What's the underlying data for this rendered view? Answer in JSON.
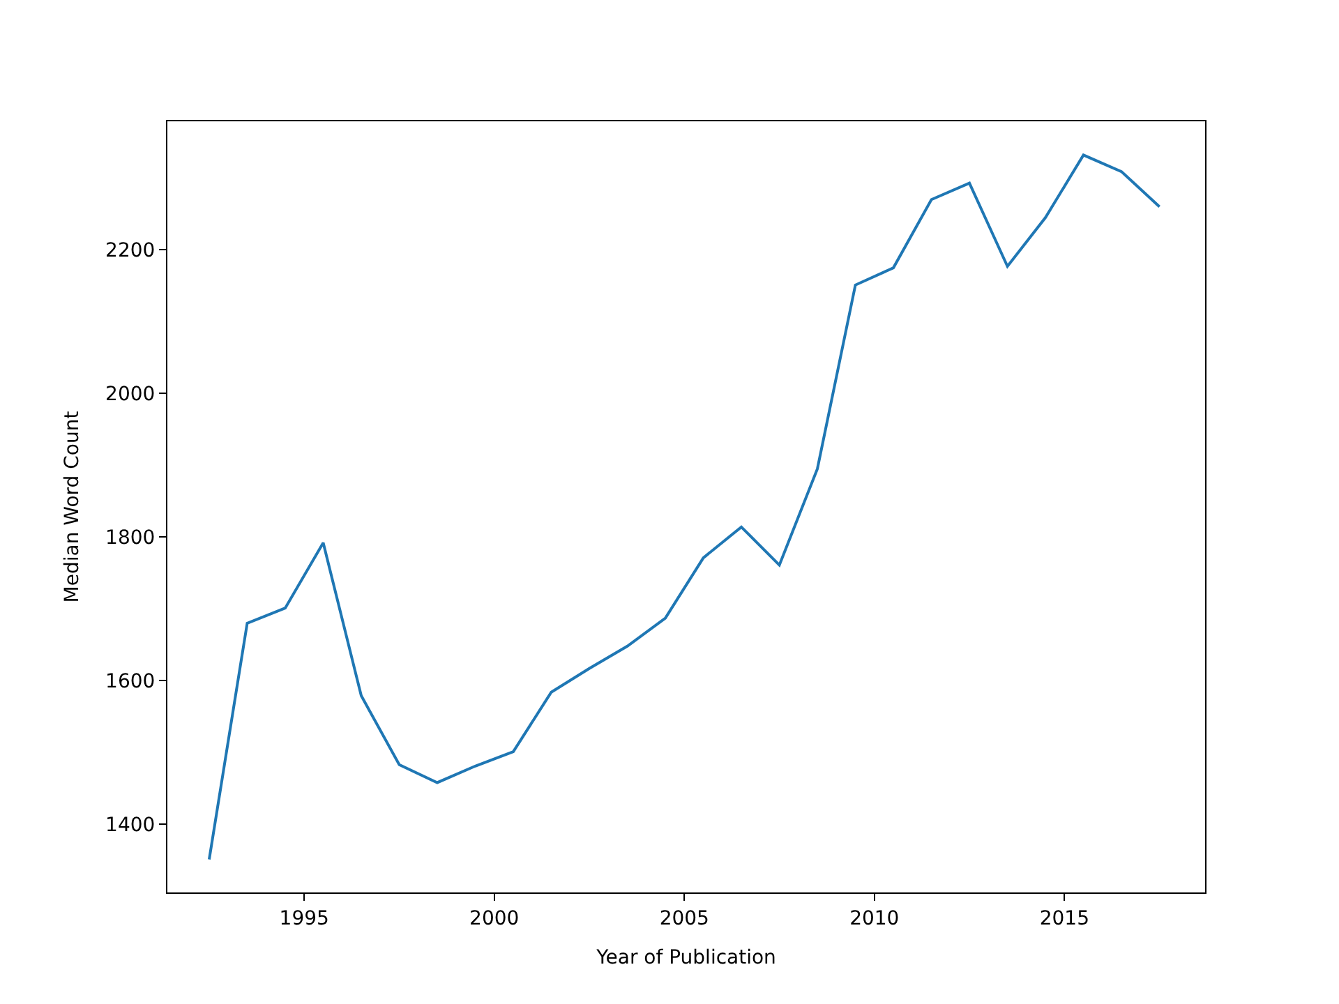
{
  "chart_data": {
    "type": "line",
    "xlabel": "Year of Publication",
    "ylabel": "Median Word Count",
    "x": [
      1992.5,
      1993.5,
      1994.5,
      1995.5,
      1996.5,
      1997.5,
      1998.5,
      1999.5,
      2000.5,
      2001.5,
      2002.5,
      2003.5,
      2004.5,
      2005.5,
      2006.5,
      2007.5,
      2008.5,
      2009.5,
      2010.5,
      2011.5,
      2012.5,
      2013.5,
      2014.5,
      2015.5,
      2016.5,
      2017.5
    ],
    "series": [
      {
        "color": "#1f77b4",
        "values": [
          1351,
          1680,
          1701,
          1792,
          1579,
          1483,
          1458,
          1481,
          1501,
          1584,
          1617,
          1648,
          1687,
          1771,
          1814,
          1761,
          1895,
          2151,
          2175,
          2270,
          2293,
          2177,
          2245,
          2332,
          2309,
          2260
        ]
      }
    ],
    "xlim": [
      1991.4,
      2018.7
    ],
    "xticks": [
      1995,
      2000,
      2005,
      2010,
      2015
    ],
    "ylim": [
      1305,
      2379
    ],
    "yticks": [
      1400,
      1600,
      1800,
      2000,
      2200
    ],
    "marker": "none",
    "line_style": "solid"
  }
}
